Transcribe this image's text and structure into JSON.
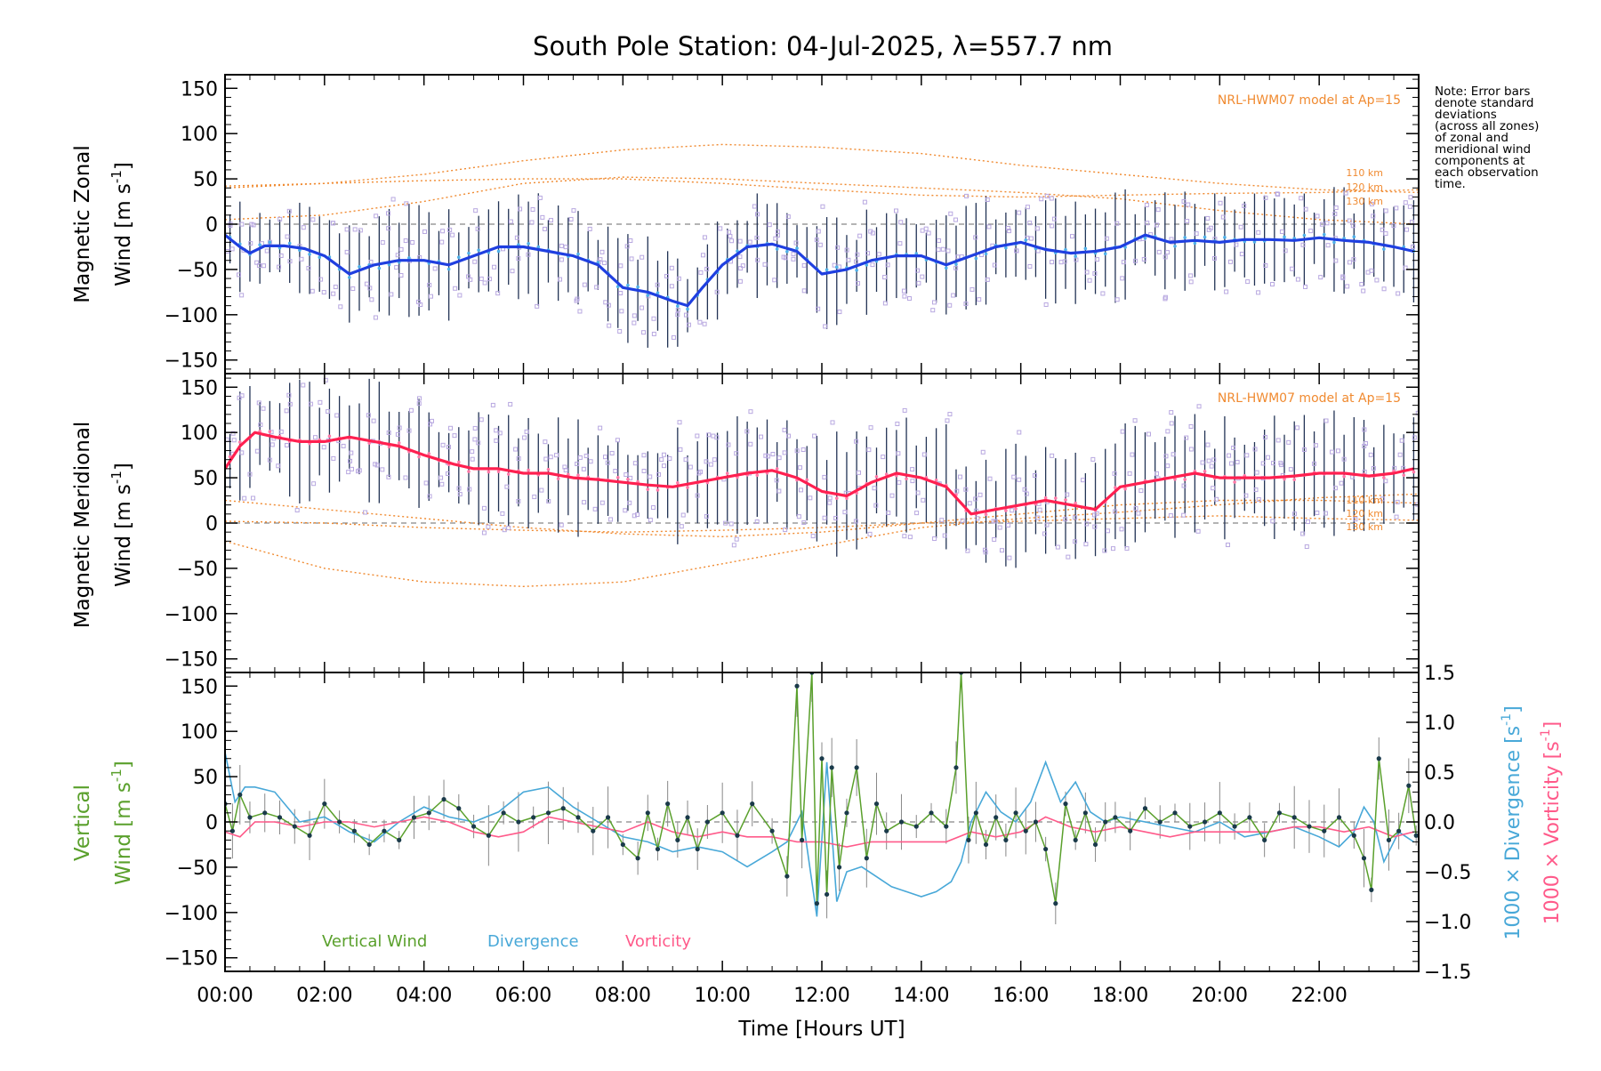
{
  "title": "South Pole Station: 04-Jul-2025, λ=557.7 nm",
  "note": [
    "Note: Error bars",
    "denote standard",
    "deviations",
    "(across all zones)",
    "of zonal and",
    "meridional wind",
    "components at",
    "each observation",
    "time."
  ],
  "colors": {
    "zonal_mean": "#1f3fe0",
    "zonal_sky": "#4fb0e8",
    "meridional_mean": "#ff2050",
    "meridional_pink": "#ff7aa8",
    "scatter": "#b8a8e0",
    "errorbar": "#223355",
    "model": "#f08a30",
    "vertical": "#5aa02c",
    "divergence": "#48a8d8",
    "vorticity": "#ff5a8a",
    "marker": "#1a3a4a"
  },
  "chart_data": [
    {
      "type": "line",
      "panel": "zonal",
      "ylabel_line1": "Magnetic Zonal",
      "ylabel_line2": "Wind [m s",
      "ylabel_sup": "-1",
      "ylabel_close": "]",
      "ylim": [
        -165,
        165
      ],
      "yticks": [
        -150,
        -100,
        -50,
        0,
        50,
        100,
        150
      ],
      "model_label": "NRL-HWM07 model at Ap=15",
      "model_altitudes": [
        "110 km",
        "120 km",
        "130 km"
      ],
      "mean_series": {
        "name": "Mean zonal wind",
        "x": [
          0.0,
          0.3,
          0.5,
          0.8,
          1.2,
          1.6,
          2.0,
          2.5,
          3.0,
          3.5,
          4.0,
          4.5,
          5.0,
          5.5,
          6.0,
          6.5,
          7.0,
          7.5,
          8.0,
          8.5,
          9.0,
          9.3,
          9.6,
          10.0,
          10.5,
          11.0,
          11.5,
          12.0,
          12.5,
          13.0,
          13.5,
          14.0,
          14.5,
          15.0,
          15.5,
          16.0,
          16.5,
          17.0,
          17.5,
          18.0,
          18.5,
          19.0,
          19.5,
          20.0,
          20.5,
          21.0,
          21.5,
          22.0,
          22.5,
          23.0,
          23.5,
          23.9
        ],
        "y": [
          -12,
          -25,
          -32,
          -24,
          -24,
          -27,
          -35,
          -55,
          -45,
          -40,
          -40,
          -45,
          -35,
          -25,
          -25,
          -30,
          -35,
          -45,
          -70,
          -75,
          -85,
          -90,
          -70,
          -45,
          -25,
          -22,
          -30,
          -55,
          -50,
          -40,
          -35,
          -35,
          -45,
          -35,
          -25,
          -20,
          -28,
          -32,
          -30,
          -25,
          -12,
          -20,
          -18,
          -20,
          -17,
          -17,
          -18,
          -15,
          -18,
          -20,
          -25,
          -30
        ]
      },
      "error_half_width": 45,
      "model_series": [
        {
          "name": "110 km",
          "x": [
            0,
            2,
            4,
            6,
            8,
            10,
            12,
            14,
            16,
            18,
            20,
            22,
            24
          ],
          "y": [
            40,
            45,
            55,
            70,
            82,
            88,
            85,
            78,
            65,
            55,
            45,
            38,
            35
          ]
        },
        {
          "name": "120 km",
          "x": [
            0,
            2,
            4,
            6,
            8,
            10,
            12,
            14,
            16,
            18,
            20,
            22,
            24
          ],
          "y": [
            5,
            10,
            25,
            45,
            52,
            50,
            45,
            40,
            35,
            28,
            15,
            5,
            0
          ]
        },
        {
          "name": "130 km",
          "x": [
            0,
            2,
            4,
            6,
            8,
            10,
            12,
            14,
            16,
            18,
            20,
            22,
            24
          ],
          "y": [
            42,
            45,
            48,
            50,
            50,
            45,
            38,
            32,
            30,
            32,
            34,
            35,
            38
          ]
        }
      ]
    },
    {
      "type": "line",
      "panel": "meridional",
      "ylabel_line1": "Magnetic Meridional",
      "ylabel_line2": "Wind [m s",
      "ylabel_sup": "-1",
      "ylabel_close": "]",
      "ylim": [
        -165,
        165
      ],
      "yticks": [
        -150,
        -100,
        -50,
        0,
        50,
        100,
        150
      ],
      "model_label": "NRL-HWM07 model at Ap=15",
      "model_altitudes": [
        "110 km",
        "120 km",
        "130 km"
      ],
      "mean_series": {
        "name": "Mean meridional wind",
        "x": [
          0.0,
          0.3,
          0.6,
          1.0,
          1.5,
          2.0,
          2.5,
          3.0,
          3.5,
          4.0,
          4.3,
          4.6,
          5.0,
          5.5,
          6.0,
          6.5,
          7.0,
          7.5,
          8.0,
          8.5,
          9.0,
          9.5,
          10.0,
          10.5,
          11.0,
          11.5,
          12.0,
          12.5,
          13.0,
          13.5,
          14.0,
          14.5,
          15.0,
          15.5,
          16.0,
          16.5,
          17.0,
          17.5,
          18.0,
          18.5,
          19.0,
          19.5,
          20.0,
          20.5,
          21.0,
          21.5,
          22.0,
          22.5,
          23.0,
          23.5,
          23.9
        ],
        "y": [
          60,
          85,
          100,
          95,
          90,
          90,
          95,
          90,
          85,
          75,
          70,
          65,
          60,
          60,
          55,
          55,
          50,
          48,
          45,
          42,
          40,
          45,
          50,
          55,
          58,
          50,
          35,
          30,
          45,
          55,
          50,
          40,
          10,
          15,
          20,
          25,
          20,
          15,
          40,
          45,
          50,
          55,
          50,
          50,
          50,
          52,
          55,
          55,
          52,
          55,
          60
        ]
      },
      "error_half_width": 50,
      "model_series": [
        {
          "name": "110 km",
          "x": [
            0,
            2,
            4,
            6,
            8,
            10,
            12,
            14,
            16,
            18,
            20,
            22,
            24
          ],
          "y": [
            -20,
            -50,
            -65,
            -70,
            -65,
            -45,
            -25,
            -5,
            5,
            12,
            20,
            28,
            32
          ]
        },
        {
          "name": "120 km",
          "x": [
            0,
            2,
            4,
            6,
            8,
            10,
            12,
            14,
            16,
            18,
            20,
            22,
            24
          ],
          "y": [
            25,
            15,
            5,
            -5,
            -12,
            -15,
            -10,
            0,
            10,
            20,
            25,
            25,
            22
          ]
        },
        {
          "name": "130 km",
          "x": [
            0,
            2,
            4,
            6,
            8,
            10,
            12,
            14,
            16,
            18,
            20,
            22,
            24
          ],
          "y": [
            2,
            0,
            -5,
            -8,
            -10,
            -8,
            -5,
            0,
            2,
            5,
            8,
            5,
            3
          ]
        }
      ]
    },
    {
      "type": "line",
      "panel": "vertical",
      "ylabel_line1": "Vertical",
      "ylabel_line2": "Wind [m s",
      "ylabel_sup": "-1",
      "ylabel_close": "]",
      "ylim": [
        -165,
        165
      ],
      "yticks": [
        -150,
        -100,
        -50,
        0,
        50,
        100,
        150
      ],
      "y2lim": [
        -1.5,
        1.5
      ],
      "y2ticks": [
        -1.5,
        -1.0,
        -0.5,
        0.0,
        0.5,
        1.0,
        1.5
      ],
      "y2tick_labels": [
        "−1.5",
        "−1.0",
        "−0.5",
        "0.0",
        "0.5",
        "1.0",
        "1.5"
      ],
      "y2label_divergence": "1000 × Divergence [s",
      "y2label_vorticity": "1000 × Vorticity [s",
      "y2label_sup": "-1",
      "y2label_close": "]",
      "legend": [
        "Vertical Wind",
        "Divergence",
        "Vorticity"
      ],
      "series": [
        {
          "name": "Vertical Wind",
          "x": [
            0.0,
            0.15,
            0.3,
            0.5,
            0.8,
            1.1,
            1.4,
            1.7,
            2.0,
            2.3,
            2.6,
            2.9,
            3.2,
            3.5,
            3.8,
            4.1,
            4.4,
            4.7,
            5.0,
            5.3,
            5.6,
            5.9,
            6.2,
            6.5,
            6.8,
            7.1,
            7.4,
            7.7,
            8.0,
            8.3,
            8.5,
            8.7,
            8.9,
            9.1,
            9.3,
            9.5,
            9.7,
            10.0,
            10.3,
            10.6,
            11.0,
            11.3,
            11.5,
            11.6,
            11.8,
            11.9,
            12.0,
            12.1,
            12.2,
            12.35,
            12.5,
            12.7,
            12.9,
            13.1,
            13.3,
            13.6,
            13.9,
            14.2,
            14.5,
            14.7,
            14.8,
            14.95,
            15.1,
            15.3,
            15.5,
            15.7,
            15.9,
            16.1,
            16.3,
            16.5,
            16.7,
            16.9,
            17.1,
            17.3,
            17.5,
            17.7,
            17.9,
            18.2,
            18.5,
            18.8,
            19.1,
            19.4,
            19.7,
            20.0,
            20.3,
            20.6,
            20.9,
            21.2,
            21.5,
            21.8,
            22.1,
            22.4,
            22.7,
            22.9,
            23.05,
            23.2,
            23.4,
            23.6,
            23.8,
            23.95
          ],
          "y": [
            20,
            -10,
            30,
            5,
            10,
            5,
            -5,
            -15,
            20,
            0,
            -10,
            -25,
            -10,
            -20,
            5,
            10,
            25,
            15,
            -5,
            -15,
            10,
            0,
            5,
            10,
            15,
            5,
            -10,
            5,
            -25,
            -40,
            10,
            -30,
            20,
            -20,
            5,
            -30,
            0,
            10,
            -15,
            20,
            -10,
            -60,
            150,
            -20,
            165,
            -90,
            70,
            -80,
            60,
            -50,
            10,
            60,
            -40,
            20,
            -10,
            0,
            -5,
            10,
            -5,
            60,
            165,
            -20,
            10,
            -25,
            5,
            -20,
            10,
            -10,
            0,
            -30,
            -90,
            20,
            -20,
            10,
            -25,
            0,
            5,
            -10,
            15,
            0,
            10,
            -5,
            0,
            10,
            -5,
            5,
            -20,
            10,
            5,
            -5,
            -10,
            5,
            -15,
            -40,
            -75,
            70,
            -20,
            -10,
            40,
            -15
          ]
        },
        {
          "name": "Divergence",
          "x": [
            0.0,
            0.2,
            0.4,
            0.6,
            1.0,
            1.5,
            2.0,
            2.5,
            3.0,
            3.5,
            4.0,
            4.5,
            5.0,
            5.5,
            6.0,
            6.5,
            7.0,
            7.5,
            8.0,
            8.5,
            9.0,
            9.5,
            10.0,
            10.5,
            11.0,
            11.3,
            11.6,
            11.9,
            12.1,
            12.3,
            12.5,
            12.8,
            13.1,
            13.4,
            13.7,
            14.0,
            14.3,
            14.6,
            14.8,
            15.0,
            15.3,
            15.6,
            15.9,
            16.2,
            16.5,
            16.8,
            17.1,
            17.4,
            17.7,
            18.0,
            18.5,
            19.0,
            19.5,
            20.0,
            20.5,
            21.0,
            21.5,
            22.0,
            22.4,
            22.7,
            22.9,
            23.1,
            23.3,
            23.6,
            23.9
          ],
          "y": [
            0.7,
            0.2,
            0.35,
            0.35,
            0.3,
            0.0,
            0.05,
            -0.1,
            -0.2,
            0.0,
            0.15,
            0.05,
            0.0,
            0.1,
            0.3,
            0.35,
            0.15,
            0.0,
            -0.15,
            -0.2,
            -0.3,
            -0.25,
            -0.3,
            -0.45,
            -0.3,
            -0.2,
            0.1,
            -0.95,
            0.6,
            -0.8,
            -0.5,
            -0.45,
            -0.55,
            -0.65,
            -0.7,
            -0.75,
            -0.7,
            -0.6,
            -0.4,
            0.0,
            0.3,
            0.1,
            0.0,
            0.2,
            0.6,
            0.2,
            0.4,
            0.1,
            0.0,
            0.05,
            0.0,
            -0.05,
            -0.1,
            0.0,
            -0.15,
            -0.1,
            -0.05,
            -0.15,
            -0.25,
            -0.1,
            0.15,
            0.0,
            -0.4,
            -0.1,
            -0.2
          ]
        },
        {
          "name": "Vorticity",
          "x": [
            0.0,
            0.3,
            0.6,
            1.0,
            1.5,
            2.0,
            2.5,
            3.0,
            3.5,
            4.0,
            4.5,
            5.0,
            5.5,
            6.0,
            6.5,
            7.0,
            7.5,
            8.0,
            8.5,
            9.0,
            9.5,
            10.0,
            10.5,
            11.0,
            11.5,
            12.0,
            12.5,
            13.0,
            13.5,
            14.0,
            14.5,
            15.0,
            15.5,
            16.0,
            16.5,
            17.0,
            17.5,
            18.0,
            18.5,
            19.0,
            19.5,
            20.0,
            20.5,
            21.0,
            21.5,
            22.0,
            22.5,
            23.0,
            23.5,
            23.9
          ],
          "y": [
            -0.1,
            -0.15,
            0.0,
            0.0,
            -0.05,
            0.0,
            0.0,
            -0.05,
            0.0,
            0.05,
            0.0,
            -0.1,
            -0.15,
            -0.1,
            0.05,
            0.0,
            -0.05,
            -0.1,
            0.0,
            -0.1,
            -0.15,
            -0.1,
            -0.15,
            -0.15,
            -0.2,
            -0.2,
            -0.25,
            -0.2,
            -0.2,
            -0.2,
            -0.2,
            -0.1,
            -0.15,
            -0.1,
            0.05,
            -0.05,
            -0.1,
            -0.05,
            -0.1,
            -0.15,
            -0.1,
            -0.1,
            -0.1,
            -0.1,
            -0.05,
            -0.05,
            -0.1,
            -0.05,
            -0.15,
            -0.1
          ]
        }
      ]
    }
  ],
  "xaxis": {
    "label_open": "Time ",
    "label_inner": "Hours UT",
    "xlim": [
      0,
      24
    ],
    "ticks": [
      0,
      2,
      4,
      6,
      8,
      10,
      12,
      14,
      16,
      18,
      20,
      22
    ],
    "tick_labels": [
      "00:00",
      "02:00",
      "04:00",
      "06:00",
      "08:00",
      "10:00",
      "12:00",
      "14:00",
      "16:00",
      "18:00",
      "20:00",
      "22:00"
    ]
  }
}
